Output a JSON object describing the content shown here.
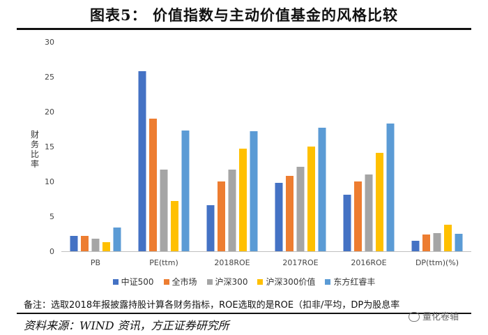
{
  "title": "图表5：  价值指数与主动价值基金的风格比较",
  "chart_data": {
    "type": "bar",
    "ylabel": "财务比率",
    "xlabel": "",
    "ylim": [
      0,
      30
    ],
    "yticks": [
      0,
      5,
      10,
      15,
      20,
      25,
      30
    ],
    "grid": false,
    "legend_position": "bottom",
    "categories": [
      "PB",
      "PE(ttm)",
      "2018ROE",
      "2017ROE",
      "2016ROE",
      "DP(ttm)(%)"
    ],
    "series": [
      {
        "name": "中证500",
        "color": "#4472C4",
        "values": [
          2.2,
          25.8,
          6.6,
          9.8,
          8.1,
          1.5
        ]
      },
      {
        "name": "全市场",
        "color": "#ED7D31",
        "values": [
          2.2,
          19.0,
          10.0,
          10.8,
          10.0,
          2.4
        ]
      },
      {
        "name": "沪深300",
        "color": "#A5A5A5",
        "values": [
          1.8,
          11.7,
          11.7,
          12.1,
          11.0,
          2.6
        ]
      },
      {
        "name": "沪深300价值",
        "color": "#FFC000",
        "values": [
          1.3,
          7.2,
          14.7,
          15.0,
          14.1,
          3.8
        ]
      },
      {
        "name": "东方红睿丰",
        "color": "#5B9BD5",
        "values": [
          3.4,
          17.3,
          17.2,
          17.7,
          18.3,
          2.5
        ]
      }
    ]
  },
  "note": "备注：选取2018年报披露持股计算各财务指标，ROE选取的是ROE（扣非/平均，DP为股息率",
  "source": "资料来源：WIND 资讯，方正证券研究所",
  "watermark": "量化卷轴"
}
